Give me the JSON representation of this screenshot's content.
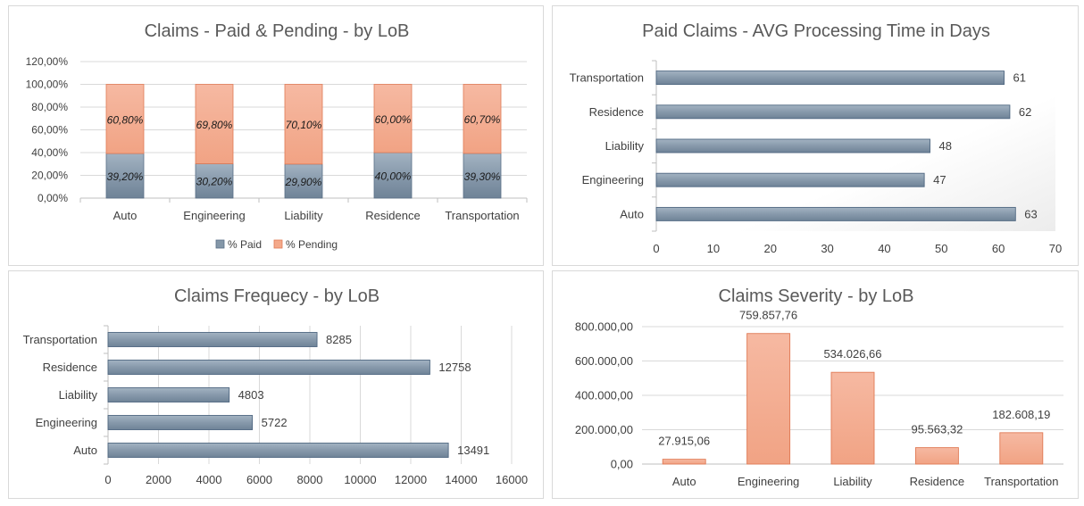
{
  "chart_data": [
    {
      "type": "bar",
      "orientation": "vertical",
      "stacked": true,
      "title": "Claims - Paid & Pending - by LoB",
      "categories": [
        "Auto",
        "Engineering",
        "Liability",
        "Residence",
        "Transportation"
      ],
      "series": [
        {
          "name": "% Paid",
          "values": [
            39.2,
            30.2,
            29.9,
            40.0,
            39.3
          ],
          "labels": [
            "39,20%",
            "30,20%",
            "29,90%",
            "40,00%",
            "39,30%"
          ],
          "color": "#8497a8"
        },
        {
          "name": "% Pending",
          "values": [
            60.8,
            69.8,
            70.1,
            60.0,
            60.7
          ],
          "labels": [
            "60,80%",
            "69,80%",
            "70,10%",
            "60,00%",
            "60,70%"
          ],
          "color": "#f4a98a"
        }
      ],
      "ylim": [
        0,
        120
      ],
      "yticks": [
        "0,00%",
        "20,00%",
        "40,00%",
        "60,00%",
        "80,00%",
        "100,00%",
        "120,00%"
      ],
      "grid": true,
      "legend": "bottom"
    },
    {
      "type": "bar",
      "orientation": "horizontal",
      "title": "Paid Claims - AVG Processing Time in Days",
      "categories": [
        "Auto",
        "Engineering",
        "Liability",
        "Residence",
        "Transportation"
      ],
      "values": [
        63,
        47,
        48,
        62,
        61
      ],
      "labels": [
        "63",
        "47",
        "48",
        "62",
        "61"
      ],
      "xlim": [
        0,
        70
      ],
      "xticks": [
        "0",
        "10",
        "20",
        "30",
        "40",
        "50",
        "60",
        "70"
      ],
      "grid": false,
      "color": "#8497a8"
    },
    {
      "type": "bar",
      "orientation": "horizontal",
      "title": "Claims Frequecy - by LoB",
      "categories": [
        "Auto",
        "Engineering",
        "Liability",
        "Residence",
        "Transportation"
      ],
      "values": [
        13491,
        5722,
        4803,
        12758,
        8285
      ],
      "labels": [
        "13491",
        "5722",
        "4803",
        "12758",
        "8285"
      ],
      "xlim": [
        0,
        16000
      ],
      "xticks": [
        "0",
        "2000",
        "4000",
        "6000",
        "8000",
        "10000",
        "12000",
        "14000",
        "16000"
      ],
      "grid": true,
      "color": "#8497a8"
    },
    {
      "type": "bar",
      "orientation": "vertical",
      "title": "Claims Severity - by LoB",
      "categories": [
        "Auto",
        "Engineering",
        "Liability",
        "Residence",
        "Transportation"
      ],
      "values": [
        27915.06,
        759857.76,
        534026.66,
        95563.32,
        182608.19
      ],
      "labels": [
        "27.915,06",
        "759.857,76",
        "534.026,66",
        "95.563,32",
        "182.608,19"
      ],
      "ylim": [
        0,
        800000
      ],
      "yticks": [
        "0,00",
        "200.000,00",
        "400.000,00",
        "600.000,00",
        "800.000,00"
      ],
      "grid": true,
      "color": "#f4a98a"
    }
  ]
}
